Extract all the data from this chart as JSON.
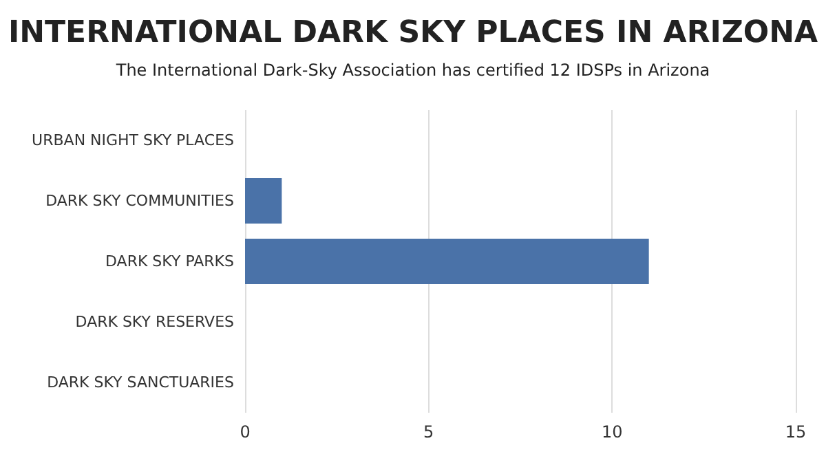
{
  "chart_data": {
    "type": "bar",
    "orientation": "horizontal",
    "title": "INTERNATIONAL DARK SKY PLACES IN ARIZONA",
    "subtitle": "The International Dark-Sky Association has certified 12 IDSPs in Arizona",
    "categories": [
      "URBAN NIGHT SKY PLACES",
      "DARK SKY COMMUNITIES",
      "DARK SKY PARKS",
      "DARK SKY RESERVES",
      "DARK SKY SANCTUARIES"
    ],
    "values": [
      0,
      1,
      11,
      0,
      0
    ],
    "color": "#4a72a8",
    "xlim": [
      0,
      15
    ],
    "xticks": [
      0,
      5,
      10,
      15
    ],
    "grid": "x"
  }
}
